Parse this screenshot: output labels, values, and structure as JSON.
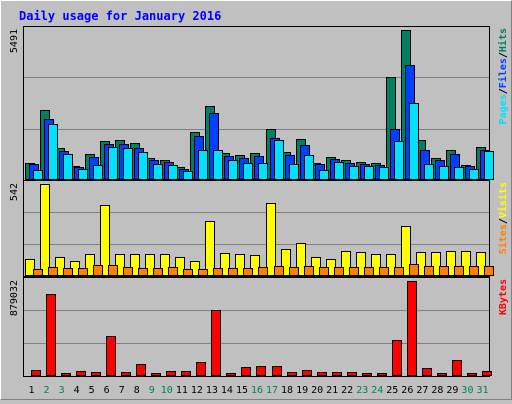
{
  "title": "Daily usage for January 2016",
  "colors": {
    "background": "#C0C0C0",
    "frame": "#000000",
    "title": "#0000FF",
    "hits": "#008060",
    "files": "#0040FF",
    "pages": "#00E0FF",
    "visits": "#FFFF00",
    "sites": "#FF8000",
    "kbytes": "#FF0000",
    "weekday_label": "#000000",
    "weekend_label": "#00805C"
  },
  "chart_data": [
    {
      "type": "bar",
      "panel": "hits-files-pages",
      "max_label": "5491",
      "ylim": [
        0,
        5491
      ],
      "grid": true,
      "categories": [
        "1",
        "2",
        "3",
        "4",
        "5",
        "6",
        "7",
        "8",
        "9",
        "10",
        "11",
        "12",
        "13",
        "14",
        "15",
        "16",
        "17",
        "18",
        "19",
        "20",
        "21",
        "22",
        "23",
        "24",
        "25",
        "26",
        "27",
        "28",
        "29",
        "30",
        "31"
      ],
      "legend": [
        "Pages",
        "/",
        "Files",
        "/",
        "Hits"
      ],
      "series": [
        {
          "name": "Hits",
          "color_key": "hits",
          "values": [
            620,
            2560,
            1180,
            520,
            940,
            1420,
            1450,
            1360,
            790,
            720,
            470,
            1770,
            2720,
            1000,
            900,
            990,
            1860,
            1010,
            1510,
            640,
            840,
            720,
            660,
            620,
            3770,
            5491,
            1460,
            810,
            1080,
            560,
            1220
          ]
        },
        {
          "name": "Files",
          "color_key": "files",
          "values": [
            580,
            2250,
            1060,
            470,
            840,
            1300,
            1300,
            1180,
            720,
            650,
            420,
            1620,
            2460,
            880,
            800,
            880,
            1520,
            920,
            1290,
            570,
            760,
            640,
            590,
            560,
            1860,
            4200,
            1100,
            730,
            960,
            500,
            1080
          ]
        },
        {
          "name": "Pages",
          "color_key": "pages",
          "values": [
            360,
            2040,
            960,
            410,
            560,
            1200,
            1180,
            1010,
            570,
            560,
            320,
            1080,
            1110,
            720,
            640,
            640,
            1450,
            580,
            930,
            360,
            670,
            510,
            520,
            470,
            1440,
            2820,
            580,
            520,
            460,
            410,
            1060
          ]
        }
      ]
    },
    {
      "type": "bar",
      "panel": "visits-sites",
      "max_label": "542",
      "ylim": [
        0,
        542
      ],
      "grid": true,
      "categories": [
        "1",
        "2",
        "3",
        "4",
        "5",
        "6",
        "7",
        "8",
        "9",
        "10",
        "11",
        "12",
        "13",
        "14",
        "15",
        "16",
        "17",
        "18",
        "19",
        "20",
        "21",
        "22",
        "23",
        "24",
        "25",
        "26",
        "27",
        "28",
        "29",
        "30",
        "31"
      ],
      "legend": [
        "Sites",
        "/",
        "Visits"
      ],
      "series": [
        {
          "name": "Visits",
          "color_key": "visits",
          "values": [
            100,
            542,
            110,
            90,
            130,
            418,
            130,
            130,
            130,
            130,
            110,
            90,
            325,
            135,
            130,
            125,
            430,
            160,
            195,
            110,
            100,
            150,
            140,
            130,
            130,
            295,
            140,
            140,
            150,
            145,
            140
          ]
        },
        {
          "name": "Sites",
          "color_key": "sites",
          "values": [
            42,
            52,
            45,
            45,
            62,
            65,
            52,
            45,
            50,
            52,
            42,
            42,
            48,
            50,
            50,
            52,
            60,
            52,
            58,
            52,
            52,
            55,
            55,
            52,
            55,
            68,
            60,
            60,
            58,
            60,
            58
          ]
        }
      ]
    },
    {
      "type": "bar",
      "panel": "kbytes",
      "max_label": "879032",
      "ylim": [
        0,
        879032
      ],
      "grid": true,
      "categories": [
        "1",
        "2",
        "3",
        "4",
        "5",
        "6",
        "7",
        "8",
        "9",
        "10",
        "11",
        "12",
        "13",
        "14",
        "15",
        "16",
        "17",
        "18",
        "19",
        "20",
        "21",
        "22",
        "23",
        "24",
        "25",
        "26",
        "27",
        "28",
        "29",
        "30",
        "31"
      ],
      "legend": [
        "KBytes"
      ],
      "series": [
        {
          "name": "KBytes",
          "color_key": "kbytes",
          "values": [
            55000,
            760000,
            30000,
            45000,
            40000,
            370000,
            35000,
            115000,
            30000,
            45000,
            45000,
            125000,
            610000,
            30000,
            85000,
            95000,
            95000,
            40000,
            60000,
            35000,
            35000,
            35000,
            30000,
            30000,
            330000,
            879032,
            75000,
            30000,
            145000,
            30000,
            50000
          ]
        }
      ]
    }
  ],
  "x_labels": [
    {
      "text": "1",
      "weekend": false
    },
    {
      "text": "2",
      "weekend": true
    },
    {
      "text": "3",
      "weekend": true
    },
    {
      "text": "4",
      "weekend": false
    },
    {
      "text": "5",
      "weekend": false
    },
    {
      "text": "6",
      "weekend": false
    },
    {
      "text": "7",
      "weekend": false
    },
    {
      "text": "8",
      "weekend": false
    },
    {
      "text": "9",
      "weekend": true
    },
    {
      "text": "10",
      "weekend": true
    },
    {
      "text": "11",
      "weekend": false
    },
    {
      "text": "12",
      "weekend": false
    },
    {
      "text": "13",
      "weekend": false
    },
    {
      "text": "14",
      "weekend": false
    },
    {
      "text": "15",
      "weekend": false
    },
    {
      "text": "16",
      "weekend": true
    },
    {
      "text": "17",
      "weekend": true
    },
    {
      "text": "18",
      "weekend": false
    },
    {
      "text": "19",
      "weekend": false
    },
    {
      "text": "20",
      "weekend": false
    },
    {
      "text": "21",
      "weekend": false
    },
    {
      "text": "22",
      "weekend": false
    },
    {
      "text": "23",
      "weekend": true
    },
    {
      "text": "24",
      "weekend": true
    },
    {
      "text": "25",
      "weekend": false
    },
    {
      "text": "26",
      "weekend": false
    },
    {
      "text": "27",
      "weekend": false
    },
    {
      "text": "28",
      "weekend": false
    },
    {
      "text": "29",
      "weekend": false
    },
    {
      "text": "30",
      "weekend": true
    },
    {
      "text": "31",
      "weekend": true
    }
  ]
}
